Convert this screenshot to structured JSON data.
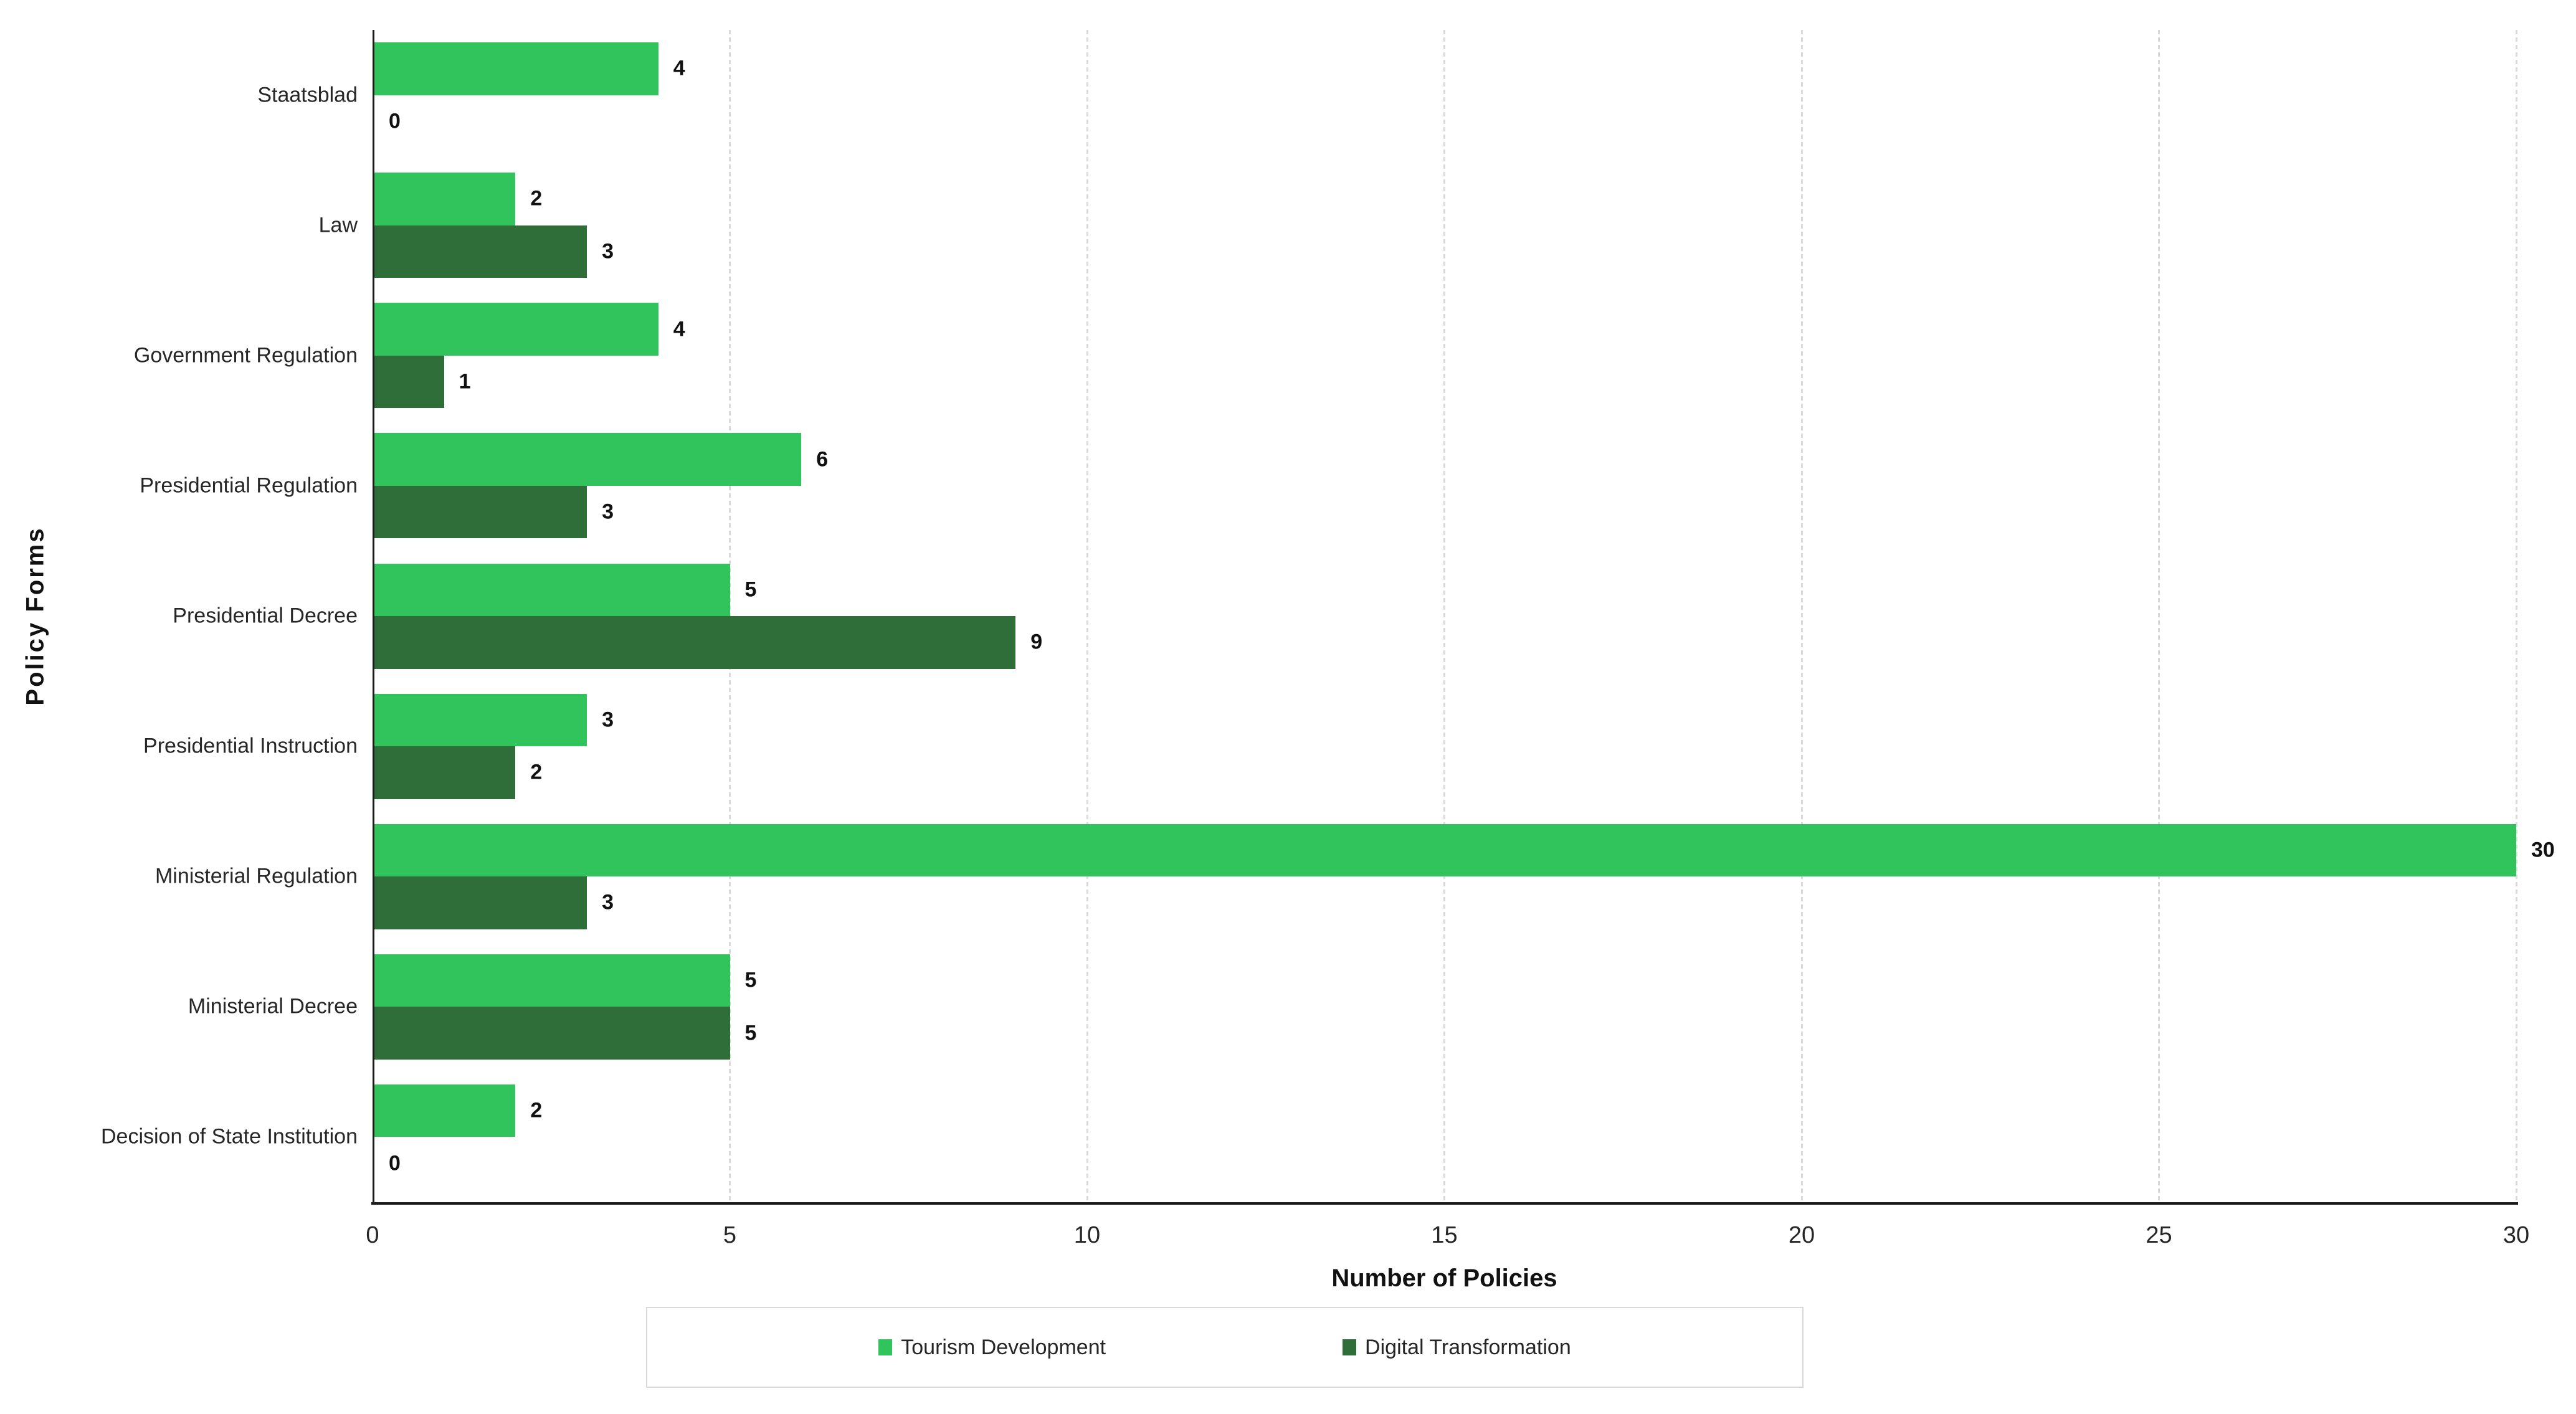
{
  "chart_data": {
    "type": "bar",
    "orientation": "horizontal",
    "title": "",
    "xlabel": "Number of Policies",
    "ylabel": "Policy Forms",
    "categories": [
      "Staatsblad",
      "Law",
      "Government Regulation",
      "Presidential Regulation",
      "Presidential Decree",
      "Presidential Instruction",
      "Ministerial Regulation",
      "Ministerial Decree",
      "Decision of State Institution"
    ],
    "series": [
      {
        "name": "Tourism Development",
        "color": "#31C45C",
        "values": [
          4,
          2,
          4,
          6,
          5,
          3,
          30,
          5,
          2
        ]
      },
      {
        "name": "Digital Transformation",
        "color": "#2F6E38",
        "values": [
          0,
          3,
          1,
          3,
          9,
          2,
          3,
          5,
          0
        ]
      }
    ],
    "xlim": [
      0,
      30
    ],
    "xticks": [
      0,
      5,
      10,
      15,
      20,
      25,
      30
    ],
    "grid": "vertical-dashed",
    "grid_color": "#D9D9D9",
    "axis_color": "#1A1A1A",
    "data_labels": true,
    "legend_position": "bottom"
  }
}
